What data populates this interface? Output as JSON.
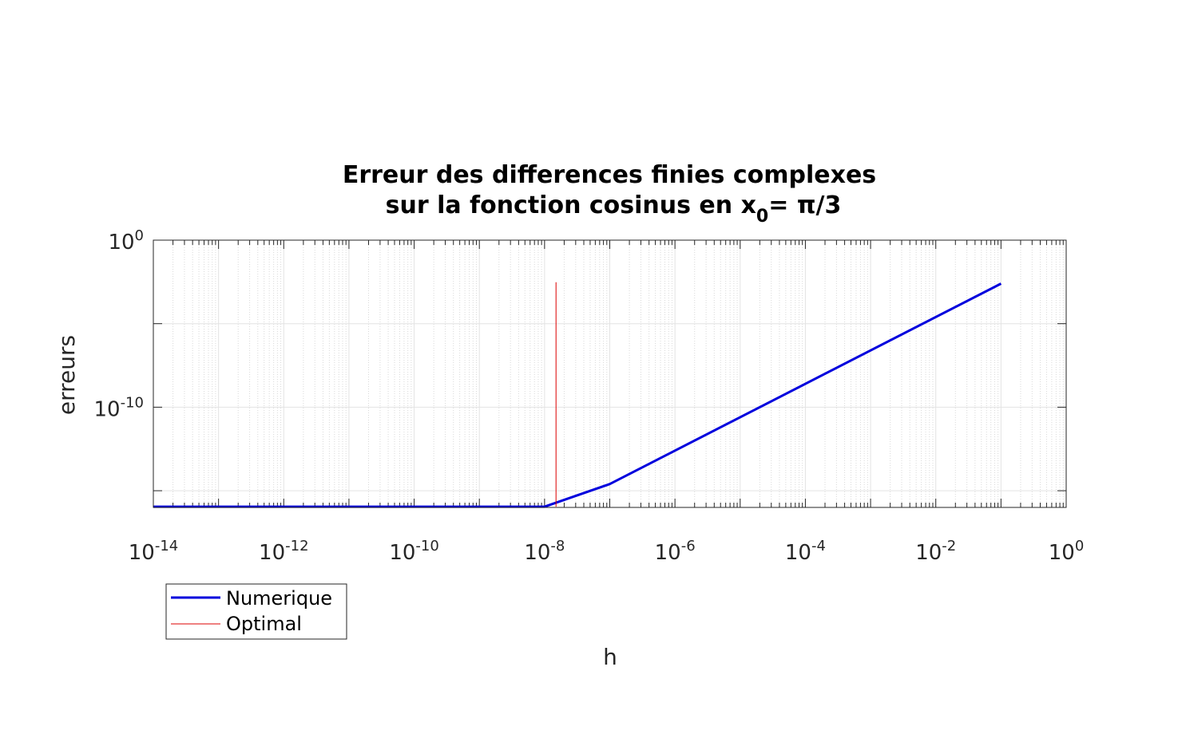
{
  "chart_data": {
    "type": "line",
    "title_line1": "Erreur des differences finies complexes",
    "title_line2_prefix": "sur la fonction cosinus en x",
    "title_line2_sub": "0",
    "title_line2_suffix": "= π/3",
    "xlabel": "h",
    "ylabel": "erreurs",
    "x_scale": "log",
    "y_scale": "log",
    "xlim": [
      1e-14,
      1
    ],
    "ylim": [
      1e-16,
      1
    ],
    "x_ticks": [
      {
        "base": "10",
        "exp": "-14",
        "value": 1e-14
      },
      {
        "base": "10",
        "exp": "-12",
        "value": 1e-12
      },
      {
        "base": "10",
        "exp": "-10",
        "value": 1e-10
      },
      {
        "base": "10",
        "exp": "-8",
        "value": 1e-08
      },
      {
        "base": "10",
        "exp": "-6",
        "value": 1e-06
      },
      {
        "base": "10",
        "exp": "-4",
        "value": 0.0001
      },
      {
        "base": "10",
        "exp": "-2",
        "value": 0.01
      },
      {
        "base": "10",
        "exp": "0",
        "value": 1
      }
    ],
    "y_ticks": [
      {
        "base": "10",
        "exp": "0",
        "value": 1
      },
      {
        "base": "10",
        "exp": "-10",
        "value": 1e-10
      }
    ],
    "grid": true,
    "series": [
      {
        "name": "Numerique",
        "color": "#0000dd",
        "x": [
          1e-14,
          1e-08,
          1e-07,
          0.1
        ],
        "y": [
          1.1e-16,
          1.1e-16,
          2.5e-15,
          0.0025
        ]
      },
      {
        "name": "Optimal",
        "color": "#dd0000",
        "x": [
          1.5e-08,
          1.5e-08
        ],
        "y": [
          1.1e-16,
          0.003
        ]
      }
    ],
    "legend_position": "bottom-left, below axes"
  }
}
